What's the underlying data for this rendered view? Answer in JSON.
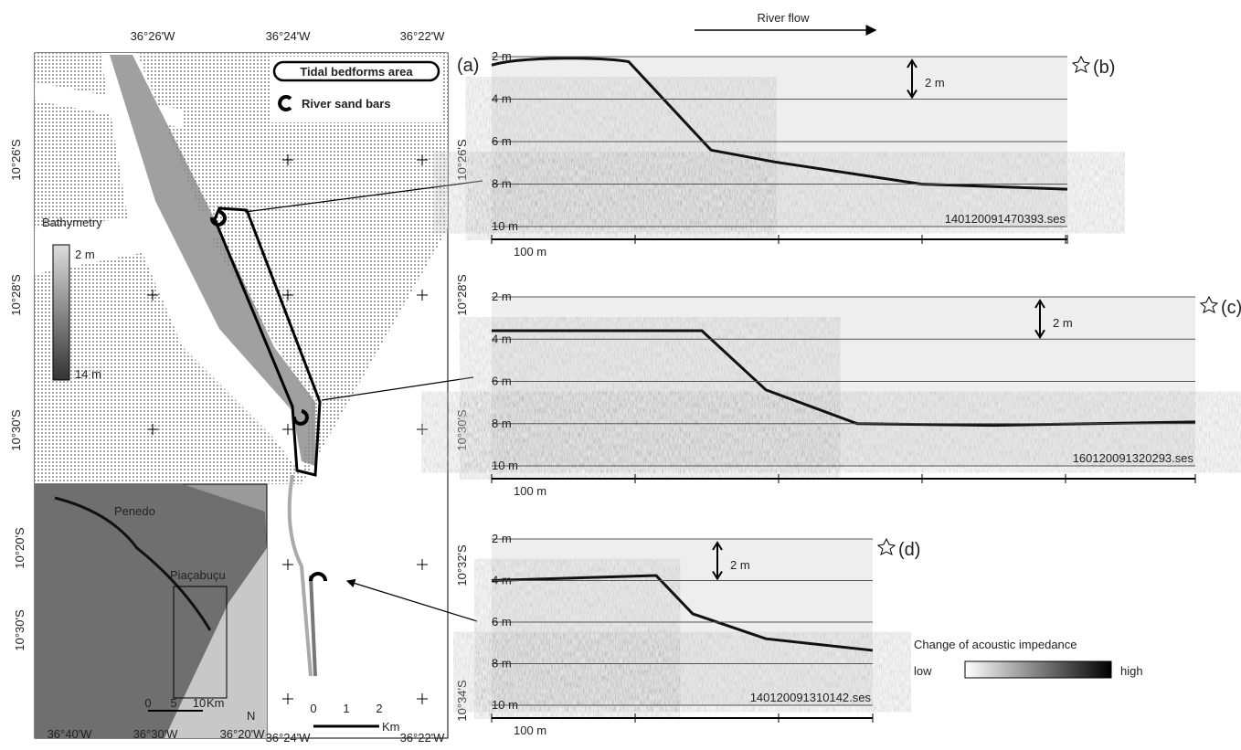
{
  "map": {
    "label": "(a)",
    "top_lon_labels": [
      "36°26'W",
      "36°24'W",
      "36°22'W"
    ],
    "bottom_lon_labels": [
      "36°24'W",
      "36°22'W"
    ],
    "left_lat_labels": [
      "10°26'S",
      "10°28'S",
      "10°30'S"
    ],
    "right_lat_labels": [
      "10°26'S",
      "10°28'S",
      "10°30'S",
      "10°32'S",
      "10°34'S"
    ],
    "legend": [
      "Tidal bedforms area",
      "River sand bars"
    ],
    "bathymetry": {
      "title": "Bathymetry",
      "min_label": "2 m",
      "max_label": "14 m"
    },
    "scale_bar": {
      "ticks": [
        "0",
        "1",
        "2"
      ],
      "unit": "Km"
    },
    "inset": {
      "places": [
        "Penedo",
        "Piaçabuçu"
      ],
      "lat_labels": [
        "10°20'S",
        "10°30'S"
      ],
      "lon_labels": [
        "36°40'W",
        "36°30'W",
        "36°20'W"
      ],
      "scale_ticks": [
        "0",
        "5",
        "10"
      ],
      "scale_unit": "Km",
      "north": "N"
    }
  },
  "river_flow": "River flow",
  "profiles": [
    {
      "label": "(b)",
      "depths": [
        "2 m",
        "4 m",
        "6 m",
        "8 m",
        "10 m"
      ],
      "scale": "2 m",
      "distance": "100 m",
      "file": "140120091470393.ses"
    },
    {
      "label": "(c)",
      "depths": [
        "2 m",
        "4 m",
        "6 m",
        "8 m",
        "10 m"
      ],
      "scale": "2 m",
      "distance": "100 m",
      "file": "160120091320293.ses"
    },
    {
      "label": "(d)",
      "depths": [
        "2 m",
        "4 m",
        "6 m",
        "8 m",
        "10 m"
      ],
      "scale": "2 m",
      "distance": "100 m",
      "file": "140120091310142.ses"
    }
  ],
  "colorbar": {
    "title": "Change of acoustic impedance",
    "low": "low",
    "high": "high"
  }
}
